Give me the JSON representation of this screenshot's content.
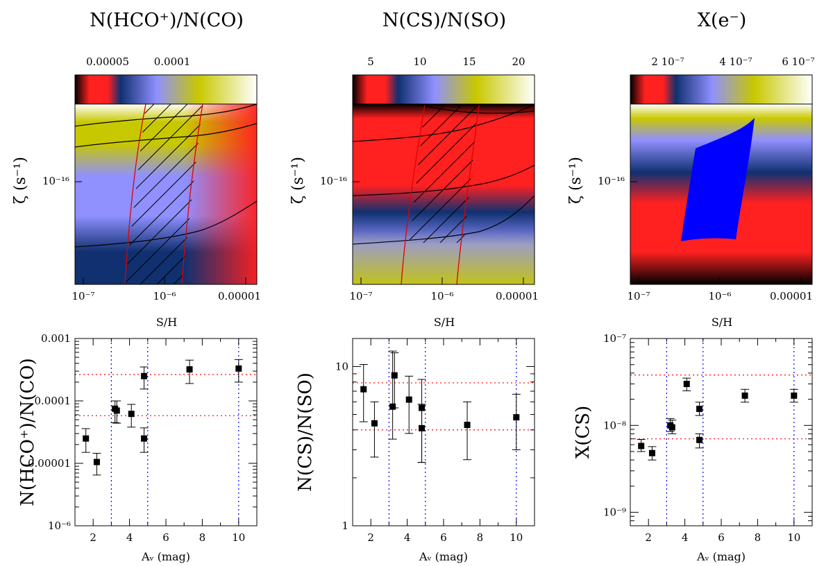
{
  "colors": {
    "colormap": [
      "#000000",
      "#ff2020",
      "#103070",
      "#9090ff",
      "#c8c800",
      "#ffffff"
    ],
    "contour": "#000000",
    "constraint": "#e00000",
    "region": "#0000ff",
    "hline": "#ff0000",
    "vline": "#0000ff",
    "marker": "#000000"
  },
  "chart_data": [
    {
      "type": "heatmap",
      "title": "N(HCO⁺)/N(CO)",
      "colorbar_ticks": [
        "0.00005",
        "0.0001"
      ],
      "xlabel": "S/H",
      "ylabel": "ζ (s⁻¹)",
      "x_ticks": [
        "10⁻⁷",
        "10⁻⁶",
        "0.00001"
      ],
      "y_ticks": [
        "10⁻¹⁶"
      ],
      "xlim": [
        8e-08,
        1.3e-05
      ],
      "ylim": [
        1.5e-17,
        4e-16
      ],
      "contours": 3,
      "hatched_region": true
    },
    {
      "type": "heatmap",
      "title": "N(CS)/N(SO)",
      "colorbar_ticks": [
        "5",
        "10",
        "15",
        "20"
      ],
      "xlabel": "S/H",
      "ylabel": "ζ (s⁻¹)",
      "x_ticks": [
        "10⁻⁷",
        "10⁻⁶",
        "0.00001"
      ],
      "y_ticks": [
        "10⁻¹⁶"
      ],
      "xlim": [
        8e-08,
        1.3e-05
      ],
      "ylim": [
        1.5e-17,
        4e-16
      ],
      "contours": 4,
      "hatched_region": true
    },
    {
      "type": "heatmap",
      "title": "X(e⁻)",
      "colorbar_ticks": [
        "2 10⁻⁷",
        "4 10⁻⁷",
        "6 10⁻⁷"
      ],
      "xlabel": "S/H",
      "ylabel": "ζ (s⁻¹)",
      "x_ticks": [
        "10⁻⁷",
        "10⁻⁶",
        "0.00001"
      ],
      "y_ticks": [
        "10⁻¹⁶"
      ],
      "xlim": [
        8e-08,
        1.3e-05
      ],
      "ylim": [
        1.5e-17,
        4e-16
      ],
      "solid_region": true
    },
    {
      "type": "scatter",
      "ylabel": "N(HCO⁺)/N(CO)",
      "xlabel": "Aᵥ (mag)",
      "x_ticks": [
        "2",
        "4",
        "6",
        "8",
        "10"
      ],
      "y_ticks": [
        "10⁻⁶",
        "0.00001",
        "0.0001",
        "0.001"
      ],
      "xlim": [
        1,
        11
      ],
      "ylim": [
        1e-06,
        0.001
      ],
      "yscale": "log",
      "x": [
        1.6,
        2.2,
        3.2,
        3.3,
        4.1,
        4.8,
        4.8,
        7.3,
        10.0
      ],
      "y": [
        2.5e-05,
        1.05e-05,
        7.5e-05,
        7e-05,
        6.2e-05,
        2.5e-05,
        0.00025,
        0.00032,
        0.00033
      ],
      "yerr_low": [
        1.5e-05,
        6.5e-06,
        4.5e-05,
        4.4e-05,
        3.8e-05,
        1.5e-05,
        0.000155,
        0.00019,
        0.0002
      ],
      "yerr_high": [
        3.6e-05,
        1.45e-05,
        0.0001,
        0.0001,
        8.8e-05,
        3.7e-05,
        0.00035,
        0.00045,
        0.00046
      ],
      "hlines": [
        5.8e-05,
        0.000265
      ],
      "vlines": [
        3,
        5,
        10
      ]
    },
    {
      "type": "scatter",
      "ylabel": "N(CS)/N(SO)",
      "xlabel": "Aᵥ (mag)",
      "x_ticks": [
        "2",
        "4",
        "6",
        "8",
        "10"
      ],
      "y_ticks": [
        "1",
        "10"
      ],
      "xlim": [
        1,
        11
      ],
      "ylim": [
        1,
        15
      ],
      "yscale": "log",
      "x": [
        1.6,
        2.2,
        3.2,
        3.3,
        4.1,
        4.8,
        4.8,
        7.3,
        10.0
      ],
      "y": [
        7.2,
        4.4,
        5.6,
        8.8,
        6.2,
        5.5,
        4.1,
        4.3,
        4.8
      ],
      "yerr_low": [
        4.5,
        2.7,
        3.5,
        5.5,
        3.8,
        2.5,
        2.5,
        2.6,
        3.0
      ],
      "yerr_high": [
        10.3,
        6.0,
        12.5,
        12.2,
        8.7,
        8.3,
        5.8,
        6.0,
        6.7
      ],
      "hlines": [
        4.0,
        7.9
      ],
      "vlines": [
        3,
        5,
        10
      ]
    },
    {
      "type": "scatter",
      "ylabel": "X(CS)",
      "xlabel": "Aᵥ (mag)",
      "x_ticks": [
        "2",
        "4",
        "6",
        "8",
        "10"
      ],
      "y_ticks": [
        "10⁻⁹",
        "10⁻⁸",
        "10⁻⁷"
      ],
      "xlim": [
        1,
        11
      ],
      "ylim": [
        7e-10,
        1e-07
      ],
      "yscale": "log",
      "x": [
        1.6,
        2.2,
        3.2,
        3.3,
        4.1,
        4.8,
        4.8,
        7.3,
        10.0
      ],
      "y": [
        5.8e-09,
        4.8e-09,
        1e-08,
        9.5e-09,
        3e-08,
        6.8e-09,
        1.55e-08,
        2.2e-08,
        2.2e-08
      ],
      "yerr_low": [
        5e-09,
        4e-09,
        8.5e-09,
        8e-09,
        2.5e-08,
        5.5e-09,
        1.3e-08,
        1.85e-08,
        1.85e-08
      ],
      "yerr_high": [
        6.9e-09,
        5.7e-09,
        1.2e-08,
        1.15e-08,
        3.5e-08,
        8e-09,
        1.85e-08,
        2.6e-08,
        2.6e-08
      ],
      "hlines": [
        7e-09,
        3.8e-08
      ],
      "vlines": [
        3,
        5,
        10
      ]
    }
  ]
}
